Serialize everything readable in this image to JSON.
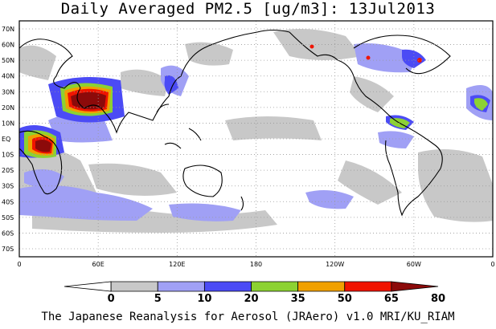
{
  "title": "Daily Averaged PM2.5 [ug/m3]: 13Jul2013",
  "credit": "The Japanese Reanalysis for Aerosol (JRAero) v1.0 MRI/KU_RIAM",
  "map": {
    "lat_labels": [
      "70N",
      "60N",
      "50N",
      "40N",
      "30N",
      "20N",
      "10N",
      "EQ",
      "10S",
      "20S",
      "30S",
      "40S",
      "50S",
      "60S",
      "70S"
    ],
    "lon_labels": [
      "0",
      "60E",
      "120E",
      "180",
      "120W",
      "60W",
      "0"
    ],
    "grid": "dotted"
  },
  "legend": {
    "ticks": [
      "0",
      "5",
      "10",
      "20",
      "35",
      "50",
      "65",
      "80"
    ],
    "colors": [
      "#ffffff",
      "#c8c8c8",
      "#a0a0f5",
      "#4b4bf5",
      "#8cd232",
      "#f0a000",
      "#f01400",
      "#8c0a0a"
    ]
  }
}
